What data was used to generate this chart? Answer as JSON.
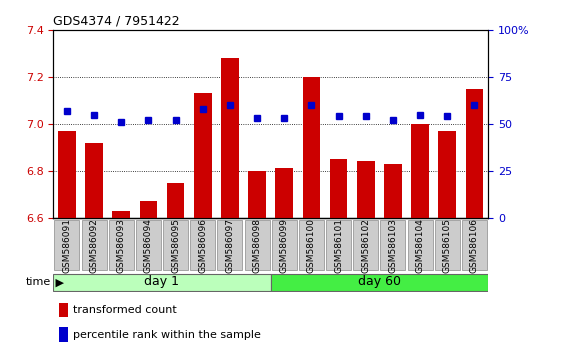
{
  "title": "GDS4374 / 7951422",
  "categories": [
    "GSM586091",
    "GSM586092",
    "GSM586093",
    "GSM586094",
    "GSM586095",
    "GSM586096",
    "GSM586097",
    "GSM586098",
    "GSM586099",
    "GSM586100",
    "GSM586101",
    "GSM586102",
    "GSM586103",
    "GSM586104",
    "GSM586105",
    "GSM586106"
  ],
  "bar_values": [
    6.97,
    6.92,
    6.63,
    6.67,
    6.75,
    7.13,
    7.28,
    6.8,
    6.81,
    7.2,
    6.85,
    6.84,
    6.83,
    7.0,
    6.97,
    7.15
  ],
  "dot_values": [
    57,
    55,
    51,
    52,
    52,
    58,
    60,
    53,
    53,
    60,
    54,
    54,
    52,
    55,
    54,
    60
  ],
  "bar_color": "#cc0000",
  "dot_color": "#0000cc",
  "ylim_left": [
    6.6,
    7.4
  ],
  "ylim_right": [
    0,
    100
  ],
  "yticks_left": [
    6.6,
    6.8,
    7.0,
    7.2,
    7.4
  ],
  "yticks_right": [
    0,
    25,
    50,
    75,
    100
  ],
  "ytick_labels_right": [
    "0",
    "25",
    "50",
    "75",
    "100%"
  ],
  "day1_indices": [
    0,
    7
  ],
  "day60_indices": [
    8,
    15
  ],
  "day1_label": "day 1",
  "day60_label": "day 60",
  "time_label": "time",
  "legend_bar_label": "transformed count",
  "legend_dot_label": "percentile rank within the sample",
  "bar_bottom": 6.6,
  "group_color_day1": "#bbffbb",
  "group_color_day60": "#44ee44",
  "tick_box_color": "#cccccc",
  "tick_box_edge": "#999999"
}
